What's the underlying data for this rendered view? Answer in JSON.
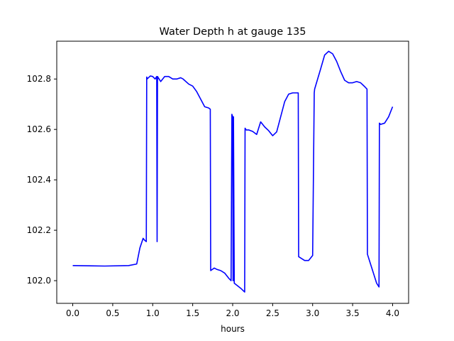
{
  "chart_data": {
    "type": "line",
    "title": "Water Depth h at gauge 135",
    "xlabel": "hours",
    "ylabel": "",
    "xlim": [
      -0.2,
      4.2
    ],
    "ylim": [
      101.91,
      102.95
    ],
    "xticks": [
      0.0,
      0.5,
      1.0,
      1.5,
      2.0,
      2.5,
      3.0,
      3.5,
      4.0
    ],
    "xtick_labels": [
      "0.0",
      "0.5",
      "1.0",
      "1.5",
      "2.0",
      "2.5",
      "3.0",
      "3.5",
      "4.0"
    ],
    "yticks": [
      102.0,
      102.2,
      102.4,
      102.6,
      102.8
    ],
    "ytick_labels": [
      "102.0",
      "102.2",
      "102.4",
      "102.6",
      "102.8"
    ],
    "grid": false,
    "colors": {
      "line": "#0000ff",
      "axes": "#000000",
      "background": "#ffffff"
    },
    "series": [
      {
        "x": [
          0.0,
          0.4,
          0.7,
          0.8,
          0.84,
          0.88,
          0.9,
          0.92,
          0.925,
          0.93,
          0.95,
          0.97,
          1.0,
          1.03,
          1.05,
          1.055,
          1.06,
          1.1,
          1.15,
          1.2,
          1.25,
          1.3,
          1.35,
          1.38,
          1.45,
          1.5,
          1.55,
          1.6,
          1.65,
          1.7,
          1.72,
          1.725,
          1.77,
          1.8,
          1.85,
          1.9,
          1.95,
          1.98,
          1.99,
          2.0,
          2.005,
          2.01,
          2.02,
          2.1,
          2.15,
          2.155,
          2.17,
          2.2,
          2.25,
          2.3,
          2.35,
          2.4,
          2.45,
          2.5,
          2.55,
          2.6,
          2.65,
          2.7,
          2.75,
          2.8,
          2.82,
          2.825,
          2.9,
          2.95,
          3.0,
          3.02,
          3.025,
          3.1,
          3.15,
          3.2,
          3.25,
          3.3,
          3.35,
          3.4,
          3.45,
          3.5,
          3.55,
          3.6,
          3.65,
          3.68,
          3.685,
          3.7,
          3.75,
          3.8,
          3.83,
          3.835,
          3.85,
          3.9,
          3.95,
          4.0
        ],
        "y": [
          102.06,
          102.058,
          102.06,
          102.066,
          102.13,
          102.168,
          102.16,
          102.155,
          102.808,
          102.8,
          102.806,
          102.812,
          102.81,
          102.8,
          102.81,
          102.155,
          102.81,
          102.79,
          102.81,
          102.81,
          102.8,
          102.8,
          102.805,
          102.8,
          102.78,
          102.772,
          102.75,
          102.72,
          102.69,
          102.685,
          102.68,
          102.04,
          102.05,
          102.045,
          102.04,
          102.03,
          102.01,
          102.0,
          102.66,
          102.65,
          102.0,
          102.65,
          101.99,
          101.97,
          101.955,
          102.605,
          102.598,
          102.598,
          102.592,
          102.58,
          102.63,
          102.61,
          102.595,
          102.575,
          102.59,
          102.65,
          102.71,
          102.74,
          102.745,
          102.745,
          102.745,
          102.095,
          102.08,
          102.08,
          102.1,
          102.745,
          102.76,
          102.84,
          102.895,
          102.91,
          102.9,
          102.87,
          102.83,
          102.795,
          102.785,
          102.785,
          102.79,
          102.785,
          102.77,
          102.76,
          102.105,
          102.09,
          102.04,
          101.99,
          101.975,
          102.625,
          102.62,
          102.625,
          102.65,
          102.69
        ]
      }
    ]
  }
}
